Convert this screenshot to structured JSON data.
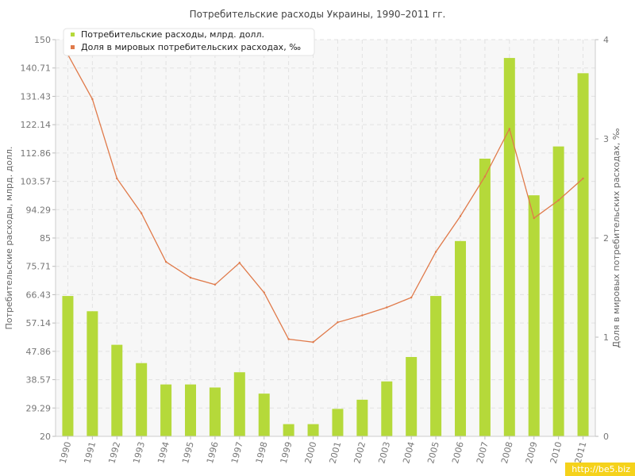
{
  "chart_data": {
    "type": "bar",
    "title": "Потребительские расходы Украины, 1990–2011 гг.",
    "xlabel": "",
    "ylabel": "Потребительские расходы, млрд. долл.",
    "y2label": "Доля в мировых потребительских расходах, ‰",
    "ylim": [
      20,
      150
    ],
    "y2lim": [
      0,
      4
    ],
    "yticks": [
      "20",
      "29.29",
      "38.57",
      "47.86",
      "57.14",
      "66.43",
      "75.71",
      "85",
      "94.29",
      "103.57",
      "112.86",
      "122.14",
      "131.43",
      "140.71",
      "150"
    ],
    "y2ticks": [
      "0",
      "1",
      "2",
      "3",
      "4"
    ],
    "grid": true,
    "legend_position": "top-left",
    "categories": [
      "1990",
      "1991",
      "1992",
      "1993",
      "1994",
      "1995",
      "1996",
      "1997",
      "1998",
      "1999",
      "2000",
      "2001",
      "2002",
      "2003",
      "2004",
      "2005",
      "2006",
      "2007",
      "2008",
      "2009",
      "2010",
      "2011"
    ],
    "series": [
      {
        "name": "Потребительские расходы, млрд. долл.",
        "type": "bar",
        "axis": "left",
        "color": "#b5d93a",
        "values": [
          66,
          61,
          50,
          44,
          37,
          37,
          36,
          41,
          34,
          24,
          24,
          29,
          32,
          38,
          46,
          66,
          84,
          111,
          144,
          99,
          115,
          139
        ]
      },
      {
        "name": "Доля в мировых потребительских расходах, ‰",
        "type": "line",
        "axis": "right",
        "color": "#e07a4a",
        "values": [
          3.85,
          3.4,
          2.6,
          2.25,
          1.76,
          1.6,
          1.53,
          1.75,
          1.45,
          0.98,
          0.95,
          1.15,
          1.22,
          1.3,
          1.4,
          1.86,
          2.22,
          2.62,
          3.1,
          2.2,
          2.38,
          2.6
        ]
      }
    ]
  },
  "watermark": "http://be5.biz"
}
